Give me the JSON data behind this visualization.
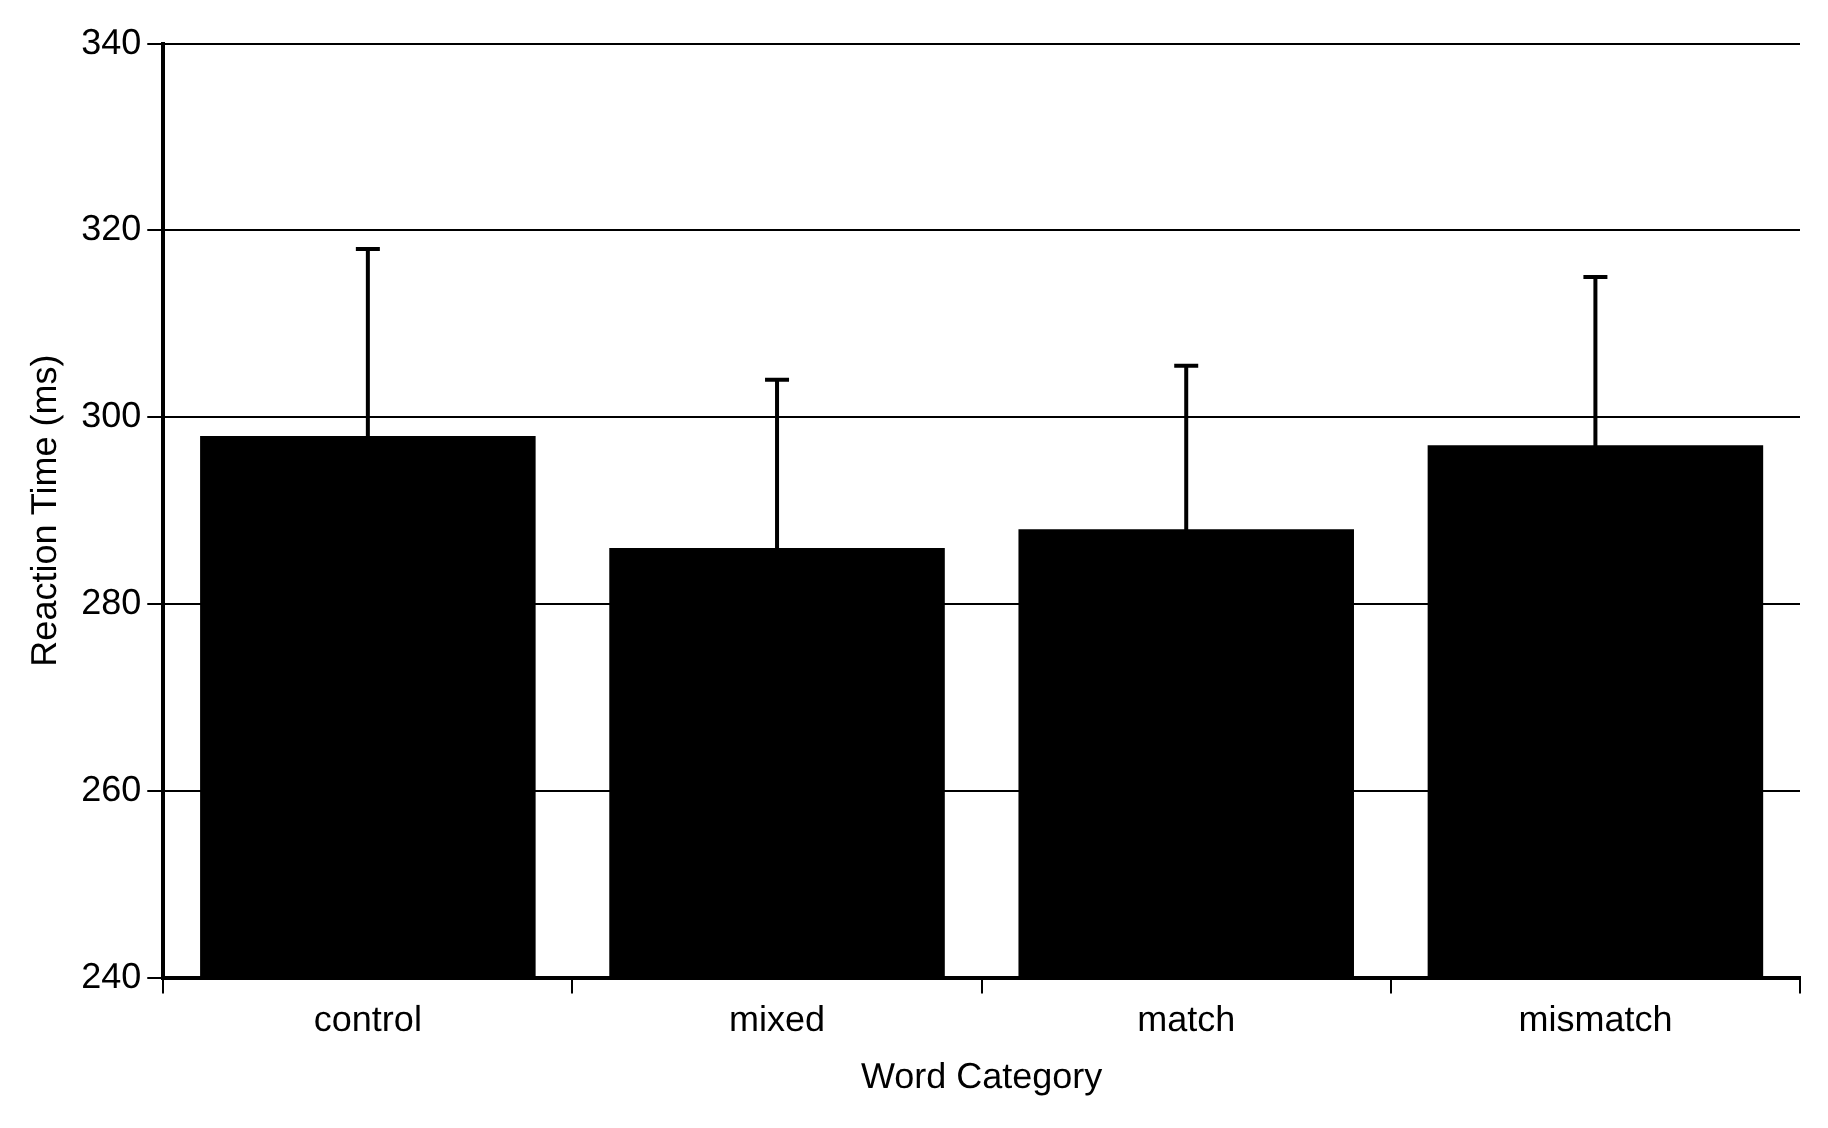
{
  "chart_data": {
    "type": "bar",
    "xlabel": "Word Category",
    "ylabel": "Reaction Time (ms)",
    "categories": [
      "control",
      "mixed",
      "match",
      "mismatch"
    ],
    "values": [
      298,
      286,
      288,
      297
    ],
    "errors": [
      20,
      18,
      17.5,
      18
    ],
    "color": "#000000",
    "ylim": [
      240,
      340
    ],
    "yticks": [
      240,
      260,
      280,
      300,
      320,
      340
    ],
    "grid": "y",
    "legend": false
  }
}
